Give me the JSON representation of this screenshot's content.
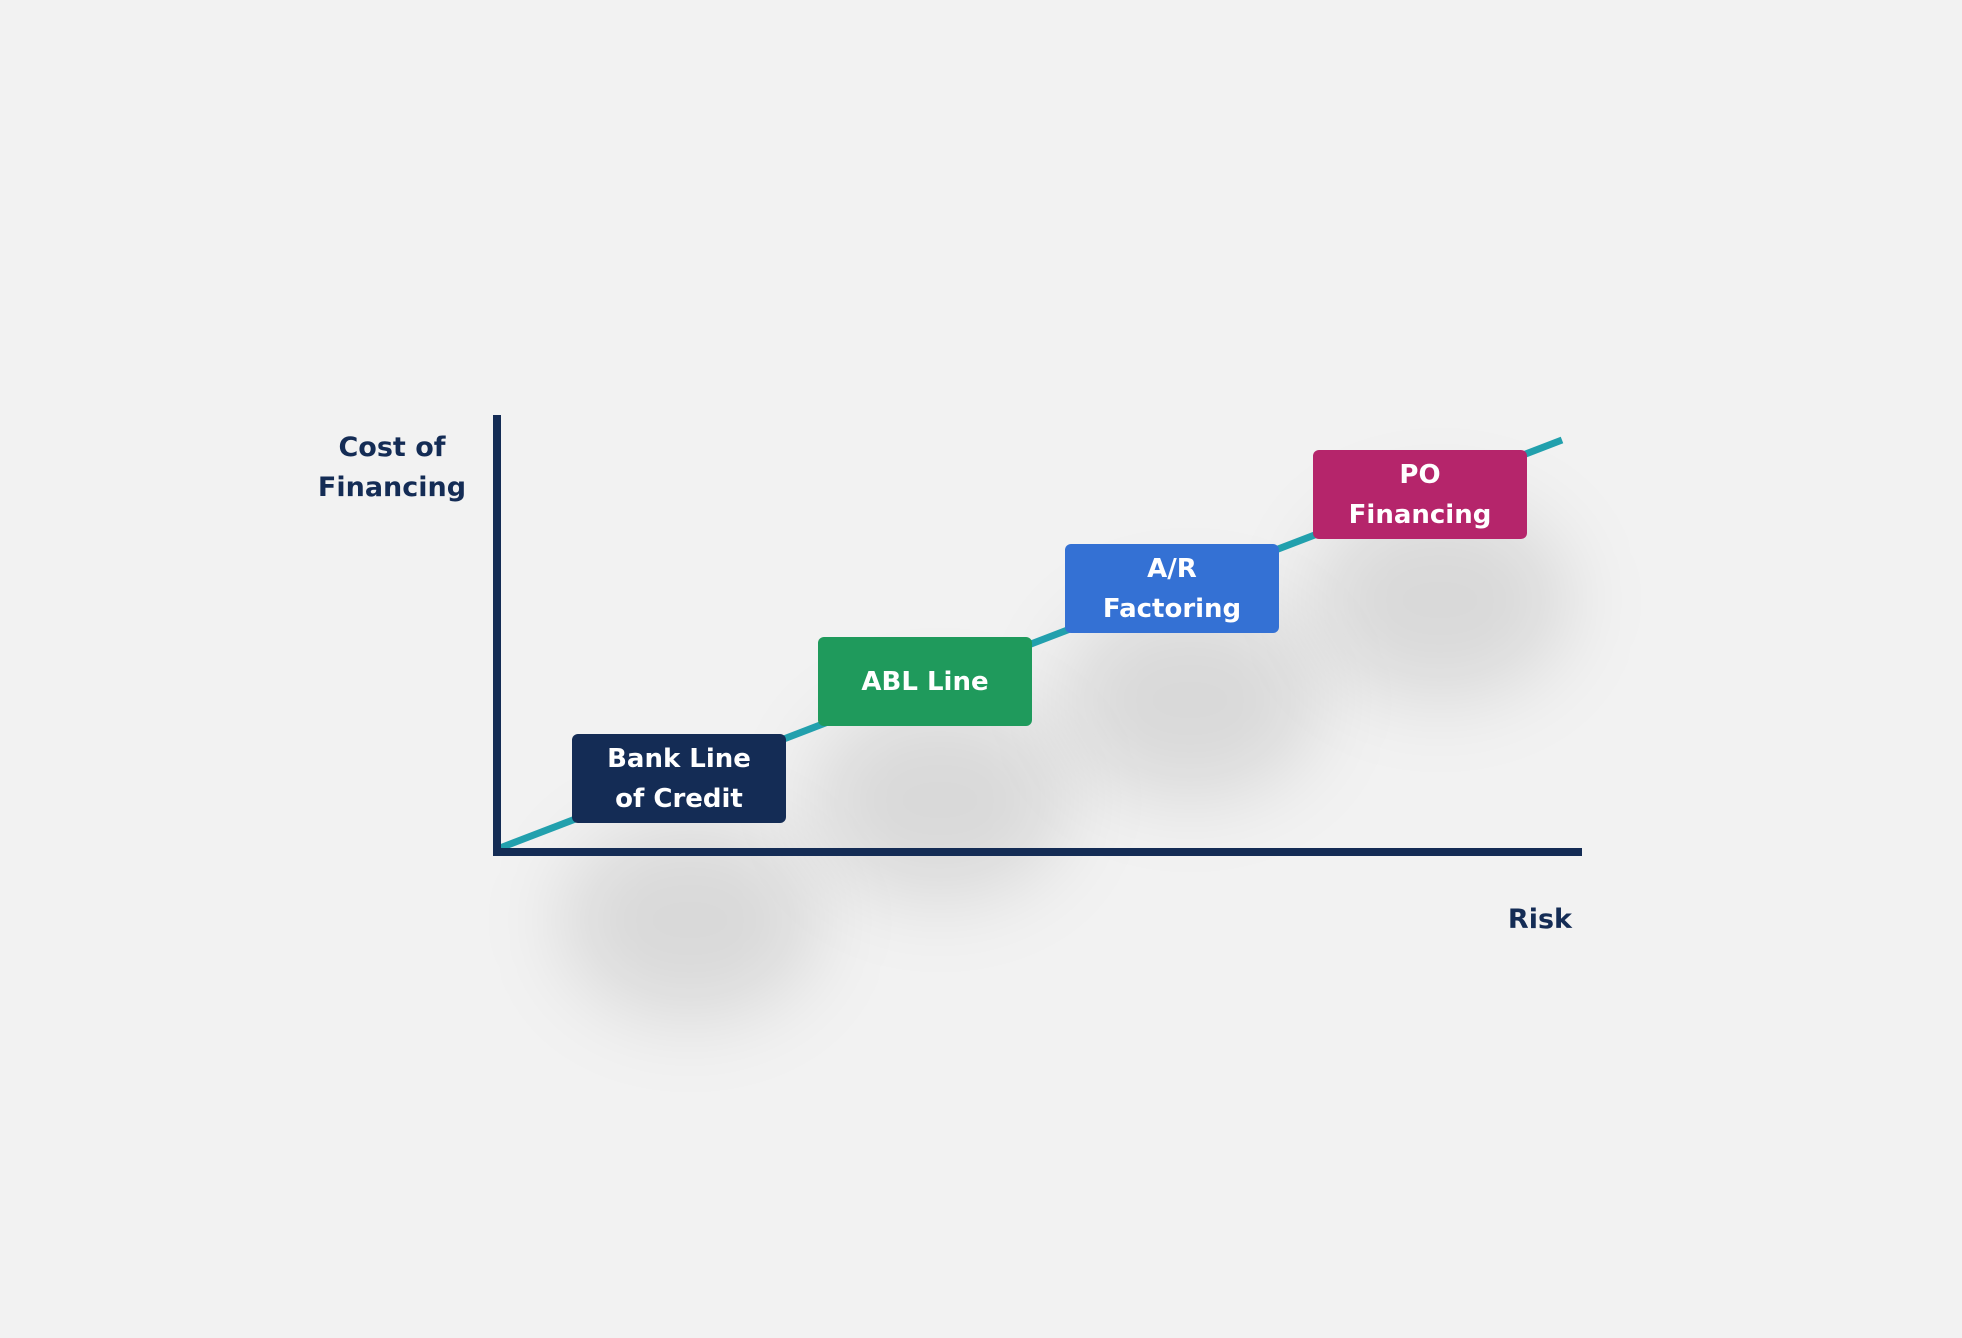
{
  "axes": {
    "y_label_line1": "Cost of",
    "y_label_line2": "Financing",
    "x_label": "Risk",
    "axis_color": "#142c55",
    "trend_line_color": "#22a0ad"
  },
  "steps": [
    {
      "line1": "Bank Line",
      "line2": "of Credit",
      "color": "#142c55"
    },
    {
      "line1": "ABL Line",
      "line2": "",
      "color": "#1f9a5c"
    },
    {
      "line1": "A/R",
      "line2": "Factoring",
      "color": "#3471d4"
    },
    {
      "line1": "PO",
      "line2": "Financing",
      "color": "#b5256b"
    }
  ]
}
